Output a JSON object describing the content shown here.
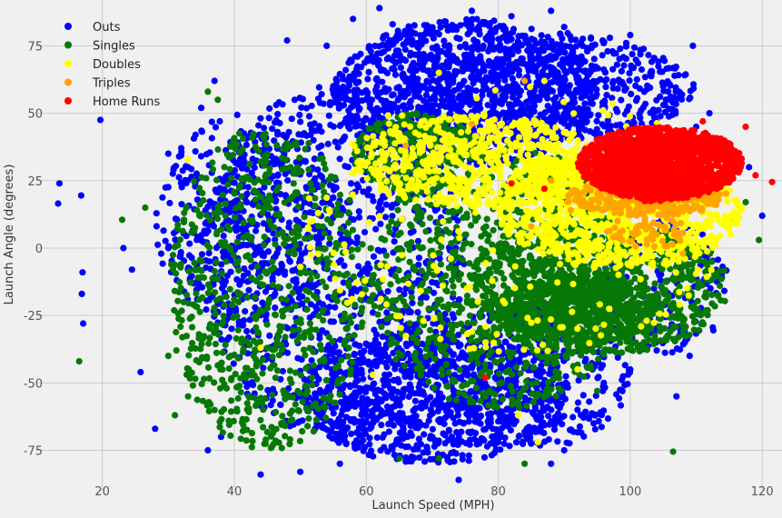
{
  "chart_data": {
    "type": "scatter",
    "title": "",
    "xlabel": "Launch Speed (MPH)",
    "ylabel": "Launch Angle (degrees)",
    "xlim": [
      10,
      123
    ],
    "ylim": [
      -90,
      92
    ],
    "xticks": [
      20,
      40,
      60,
      80,
      100,
      120
    ],
    "yticks": [
      -75,
      -50,
      -25,
      0,
      25,
      50,
      75
    ],
    "grid": true,
    "legend_position": "top-left",
    "series": [
      {
        "name": "Outs",
        "color": "#0000ff",
        "points": [
          [
            13.5,
            24
          ],
          [
            13.3,
            16.5
          ],
          [
            16.8,
            19.5
          ],
          [
            17,
            -9
          ],
          [
            16.9,
            -17
          ],
          [
            17.1,
            -28
          ],
          [
            19.7,
            47.5
          ],
          [
            23.2,
            0
          ],
          [
            24.5,
            -8
          ],
          [
            25.8,
            -46
          ],
          [
            28,
            -67
          ],
          [
            37,
            62
          ],
          [
            48,
            77
          ],
          [
            62,
            89
          ],
          [
            76,
            88
          ],
          [
            88,
            88
          ],
          [
            100,
            79
          ],
          [
            109.5,
            75
          ],
          [
            105,
            60
          ],
          [
            112,
            50
          ],
          [
            104,
            -38
          ],
          [
            107,
            -55
          ],
          [
            88,
            -80
          ],
          [
            74,
            -86
          ],
          [
            66,
            -78
          ],
          [
            44,
            -84
          ],
          [
            50,
            -83
          ],
          [
            90,
            -75
          ],
          [
            96,
            -50
          ],
          [
            30,
            35
          ],
          [
            30,
            0
          ],
          [
            35,
            52
          ],
          [
            33,
            30
          ],
          [
            55,
            60
          ],
          [
            68,
            72
          ],
          [
            85,
            72
          ],
          [
            98,
            68
          ],
          [
            110,
            45
          ],
          [
            115,
            10
          ],
          [
            60,
            -60
          ],
          [
            70,
            -70
          ],
          [
            80,
            -72
          ],
          [
            92,
            -60
          ],
          [
            100,
            -45
          ],
          [
            52,
            40
          ],
          [
            45,
            -40
          ],
          [
            56,
            -80
          ],
          [
            120,
            12
          ],
          [
            118,
            30
          ],
          [
            109,
            -40
          ],
          [
            38,
            -70
          ],
          [
            36,
            -75
          ],
          [
            42,
            -60
          ],
          [
            47,
            20
          ],
          [
            64,
            83
          ],
          [
            72,
            84
          ],
          [
            82,
            86
          ],
          [
            90,
            82
          ],
          [
            58,
            85
          ],
          [
            54,
            75
          ]
        ],
        "dense_regions": [
          [
            35,
            75,
            -70,
            60,
            1000
          ],
          [
            55,
            95,
            30,
            85,
            1000
          ],
          [
            65,
            110,
            40,
            80,
            600
          ],
          [
            50,
            90,
            -80,
            -30,
            800
          ],
          [
            95,
            115,
            -40,
            10,
            200
          ],
          [
            28,
            55,
            -30,
            50,
            350
          ],
          [
            70,
            100,
            -75,
            -20,
            400
          ]
        ]
      },
      {
        "name": "Singles",
        "color": "#067806",
        "points": [
          [
            16.5,
            -42
          ],
          [
            23,
            10.5
          ],
          [
            26.5,
            15
          ],
          [
            36,
            58
          ],
          [
            37.5,
            55
          ],
          [
            106.5,
            -75.5
          ],
          [
            119.5,
            3
          ],
          [
            117.5,
            17
          ],
          [
            30,
            -40
          ],
          [
            31,
            -62
          ],
          [
            33,
            -55
          ],
          [
            84,
            -80
          ],
          [
            65,
            -78
          ],
          [
            71,
            -78
          ],
          [
            95,
            -53
          ],
          [
            92,
            -45
          ]
        ],
        "dense_regions": [
          [
            60,
            100,
            -60,
            40,
            900
          ],
          [
            75,
            115,
            -40,
            10,
            900
          ],
          [
            30,
            60,
            -75,
            45,
            700
          ],
          [
            80,
            105,
            -35,
            -10,
            500
          ],
          [
            58,
            78,
            20,
            50,
            300
          ]
        ]
      },
      {
        "name": "Doubles",
        "color": "#ffff00",
        "points": [
          [
            44,
            -37
          ],
          [
            50,
            -7
          ],
          [
            61,
            -47
          ],
          [
            33,
            33
          ],
          [
            71,
            65
          ],
          [
            87,
            62
          ],
          [
            86,
            -72
          ],
          [
            83,
            -62
          ],
          [
            92,
            -45
          ],
          [
            76,
            -31
          ]
        ],
        "dense_regions": [
          [
            80,
            117,
            -8,
            35,
            900
          ],
          [
            58,
            95,
            15,
            50,
            600
          ],
          [
            50,
            115,
            -40,
            60,
            250
          ]
        ]
      },
      {
        "name": "Triples",
        "color": "#ffa500",
        "points": [
          [
            84,
            62
          ],
          [
            108,
            -2
          ],
          [
            88,
            25
          ],
          [
            85,
            8
          ],
          [
            91,
            14
          ],
          [
            107,
            4
          ],
          [
            113,
            16
          ],
          [
            76,
            46
          ],
          [
            66,
            38
          ]
        ],
        "dense_regions": [
          [
            90,
            115,
            12,
            25,
            300
          ],
          [
            96,
            110,
            0,
            12,
            60
          ]
        ]
      },
      {
        "name": "Home Runs",
        "color": "#ff0000",
        "points": [
          [
            121.5,
            24.5
          ],
          [
            119,
            27
          ],
          [
            117.5,
            45
          ],
          [
            111,
            47
          ],
          [
            78,
            -48
          ],
          [
            87,
            22
          ],
          [
            82,
            24
          ]
        ],
        "dense_regions": [
          [
            92,
            117,
            18,
            45,
            1400
          ],
          [
            97,
            110,
            17,
            43,
            400
          ]
        ]
      }
    ]
  }
}
